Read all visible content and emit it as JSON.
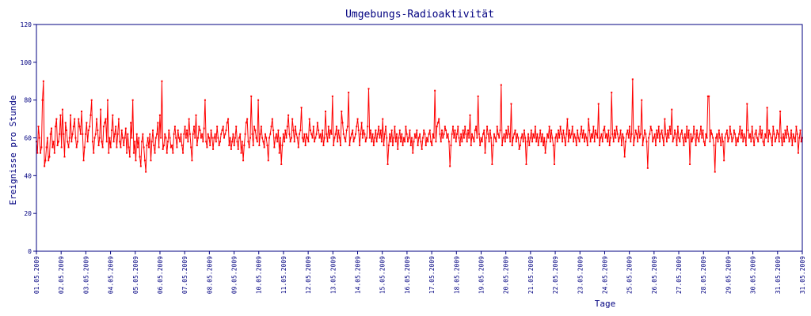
{
  "chart_data": {
    "type": "line",
    "title": "Umgebungs-Radioaktivität",
    "xlabel": "Tage",
    "ylabel": "Ereignisse pro Stunde",
    "ylim": [
      0,
      120
    ],
    "y_ticks": [
      "0",
      "20",
      "40",
      "60",
      "80",
      "100",
      "120"
    ],
    "x_ticks": [
      "01.05.2009",
      "02.05.2009",
      "03.05.2009",
      "04.05.2009",
      "05.05.2009",
      "06.05.2009",
      "07.05.2009",
      "08.05.2009",
      "09.05.2009",
      "10.05.2009",
      "11.05.2009",
      "12.05.2009",
      "13.05.2009",
      "14.05.2009",
      "15.05.2009",
      "16.05.2009",
      "17.05.2009",
      "18.05.2009",
      "19.05.2009",
      "20.05.2009",
      "21.05.2009",
      "22.05.2009",
      "23.05.2009",
      "24.05.2009",
      "25.05.2009",
      "26.05.2009",
      "27.05.2009",
      "28.05.2009",
      "29.05.2009",
      "30.05.2009",
      "31.05.2009",
      "31.05.2009"
    ],
    "grid": false,
    "colors": {
      "line": "#ff0000",
      "axis": "#000080",
      "text": "#000080"
    },
    "series": [
      {
        "values": [
          58,
          52,
          66,
          60,
          52,
          55,
          80,
          90,
          45,
          48,
          55,
          60,
          48,
          50,
          62,
          65,
          55,
          58,
          52,
          66,
          70,
          56,
          58,
          62,
          72,
          55,
          75,
          62,
          50,
          68,
          64,
          58,
          55,
          60,
          72,
          58,
          62,
          66,
          70,
          60,
          55,
          58,
          70,
          66,
          62,
          74,
          62,
          48,
          55,
          62,
          68,
          58,
          64,
          66,
          72,
          80,
          58,
          52,
          60,
          62,
          70,
          64,
          56,
          60,
          75,
          58,
          55,
          66,
          68,
          70,
          58,
          80,
          52,
          60,
          55,
          64,
          72,
          58,
          62,
          66,
          55,
          62,
          70,
          58,
          55,
          64,
          60,
          56,
          60,
          65,
          52,
          62,
          55,
          50,
          68,
          60,
          80,
          52,
          58,
          48,
          62,
          55,
          60,
          50,
          45,
          58,
          62,
          55,
          48,
          42,
          56,
          60,
          55,
          62,
          48,
          58,
          64,
          56,
          52,
          60,
          62,
          68,
          55,
          72,
          60,
          90,
          54,
          56,
          62,
          60,
          52,
          58,
          64,
          60,
          55,
          56,
          52,
          62,
          66,
          60,
          55,
          64,
          60,
          58,
          62,
          56,
          52,
          62,
          66,
          60,
          64,
          58,
          70,
          62,
          55,
          48,
          62,
          66,
          60,
          72,
          56,
          60,
          66,
          64,
          60,
          62,
          58,
          65,
          80,
          58,
          55,
          62,
          60,
          56,
          64,
          60,
          54,
          60,
          62,
          58,
          66,
          60,
          56,
          58,
          62,
          64,
          66,
          60,
          62,
          64,
          68,
          70,
          56,
          60,
          54,
          58,
          62,
          56,
          60,
          66,
          58,
          54,
          60,
          62,
          52,
          58,
          48,
          56,
          62,
          68,
          70,
          58,
          55,
          60,
          82,
          62,
          56,
          66,
          64,
          60,
          58,
          80,
          56,
          62,
          66,
          60,
          58,
          55,
          62,
          60,
          56,
          48,
          60,
          62,
          66,
          70,
          64,
          55,
          60,
          62,
          58,
          64,
          52,
          60,
          46,
          56,
          62,
          58,
          64,
          60,
          66,
          72,
          62,
          58,
          60,
          70,
          64,
          58,
          66,
          62,
          60,
          55,
          62,
          64,
          76,
          60,
          58,
          62,
          56,
          62,
          60,
          58,
          70,
          64,
          62,
          60,
          66,
          58,
          60,
          62,
          68,
          64,
          60,
          62,
          58,
          64,
          56,
          60,
          74,
          62,
          58,
          66,
          60,
          64,
          62,
          82,
          56,
          60,
          62,
          66,
          58,
          64,
          60,
          56,
          74,
          68,
          62,
          60,
          58,
          64,
          66,
          84,
          56,
          60,
          62,
          64,
          58,
          60,
          62,
          66,
          70,
          64,
          56,
          62,
          68,
          60,
          64,
          62,
          58,
          60,
          66,
          86,
          60,
          64,
          58,
          62,
          56,
          60,
          64,
          58,
          62,
          66,
          60,
          64,
          58,
          70,
          56,
          62,
          66,
          60,
          46,
          56,
          62,
          58,
          64,
          56,
          60,
          66,
          58,
          62,
          54,
          60,
          64,
          58,
          62,
          56,
          60,
          58,
          66,
          62,
          58,
          60,
          64,
          56,
          60,
          52,
          58,
          62,
          60,
          64,
          56,
          60,
          62,
          58,
          54,
          60,
          64,
          62,
          56,
          60,
          58,
          62,
          64,
          58,
          56,
          62,
          60,
          85,
          58,
          66,
          68,
          70,
          62,
          58,
          64,
          60,
          62,
          66,
          64,
          60,
          62,
          58,
          45,
          56,
          62,
          66,
          60,
          64,
          58,
          62,
          66,
          60,
          56,
          62,
          58,
          64,
          60,
          66,
          62,
          58,
          64,
          60,
          72,
          56,
          62,
          60,
          58,
          64,
          66,
          60,
          82,
          62,
          56,
          60,
          58,
          62,
          64,
          52,
          60,
          66,
          62,
          58,
          64,
          60,
          46,
          56,
          62,
          60,
          58,
          66,
          62,
          60,
          64,
          88,
          56,
          60,
          62,
          58,
          64,
          60,
          66,
          62,
          58,
          78,
          56,
          60,
          62,
          64,
          58,
          62,
          60,
          54,
          56,
          60,
          62,
          58,
          64,
          60,
          46,
          58,
          62,
          56,
          60,
          64,
          58,
          62,
          60,
          66,
          58,
          62,
          56,
          60,
          64,
          58,
          62,
          56,
          60,
          52,
          58,
          62,
          60,
          66,
          58,
          64,
          60,
          56,
          46,
          60,
          62,
          58,
          64,
          60,
          66,
          62,
          58,
          64,
          60,
          56,
          62,
          70,
          58,
          64,
          60,
          62,
          66,
          58,
          62,
          60,
          56,
          64,
          60,
          58,
          62,
          66,
          60,
          64,
          58,
          62,
          60,
          56,
          70,
          64,
          58,
          62,
          60,
          66,
          58,
          64,
          62,
          60,
          78,
          56,
          60,
          62,
          58,
          64,
          66,
          60,
          62,
          58,
          64,
          56,
          60,
          84,
          62,
          58,
          64,
          60,
          66,
          62,
          58,
          60,
          64,
          56,
          62,
          60,
          50,
          58,
          62,
          64,
          60,
          66,
          58,
          62,
          91,
          56,
          60,
          64,
          62,
          58,
          66,
          60,
          62,
          80,
          56,
          60,
          64,
          62,
          58,
          44,
          60,
          62,
          66,
          64,
          58,
          60,
          62,
          56,
          64,
          60,
          66,
          58,
          62,
          64,
          60,
          56,
          70,
          62,
          58,
          64,
          60,
          66,
          62,
          75,
          58,
          60,
          64,
          62,
          56,
          66,
          60,
          58,
          62,
          64,
          60,
          56,
          62,
          58,
          66,
          60,
          64,
          46,
          62,
          58,
          60,
          66,
          62,
          56,
          64,
          60,
          58,
          62,
          66,
          60,
          64,
          58,
          56,
          62,
          60,
          82,
          82,
          58,
          64,
          62,
          60,
          56,
          42,
          60,
          62,
          58,
          64,
          60,
          56,
          62,
          58,
          48,
          60,
          62,
          64,
          58,
          60,
          66,
          62,
          58,
          60,
          64,
          62,
          56,
          60,
          58,
          62,
          66,
          60,
          64,
          58,
          62,
          60,
          56,
          78,
          64,
          60,
          62,
          58,
          66,
          60,
          56,
          62,
          64,
          60,
          58,
          62,
          66,
          60,
          64,
          58,
          56,
          62,
          60,
          76,
          58,
          64,
          62,
          60,
          56,
          66,
          62,
          58,
          60,
          64,
          62,
          58,
          74,
          60,
          56,
          62,
          58,
          64,
          60,
          66,
          62,
          58,
          60,
          64,
          56,
          62,
          60,
          58,
          66,
          62,
          52,
          60,
          64,
          58,
          60
        ]
      }
    ]
  }
}
